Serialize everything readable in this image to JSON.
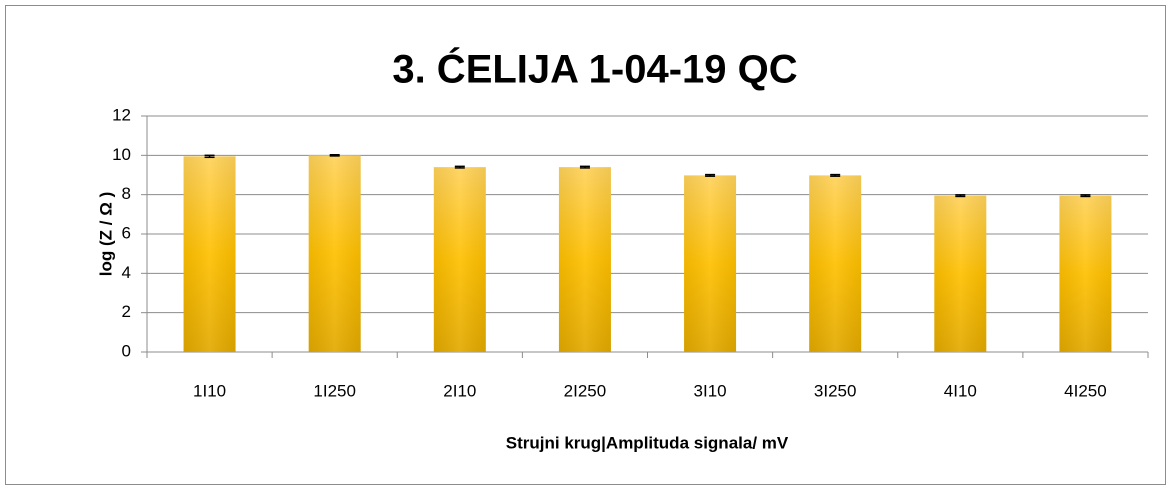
{
  "chart_data": {
    "type": "bar",
    "title": "3. ĆELIJA 1-04-19 QC",
    "x_label": "Strujni krug|Amplituda signala/  mV",
    "y_label": "log (Z / Ω )",
    "categories": [
      "1I10",
      "1I250",
      "2I10",
      "2I250",
      "3I10",
      "3I250",
      "4I10",
      "4I250"
    ],
    "values": [
      9.95,
      10.0,
      9.4,
      9.4,
      8.98,
      8.98,
      7.95,
      7.95
    ],
    "errors": [
      0.05,
      0.03,
      0.04,
      0.04,
      0.04,
      0.04,
      0.04,
      0.04
    ],
    "color": "#ffc000",
    "ylim": [
      0,
      12
    ],
    "yticks": [
      0,
      2,
      4,
      6,
      8,
      10,
      12
    ],
    "grid": true
  }
}
